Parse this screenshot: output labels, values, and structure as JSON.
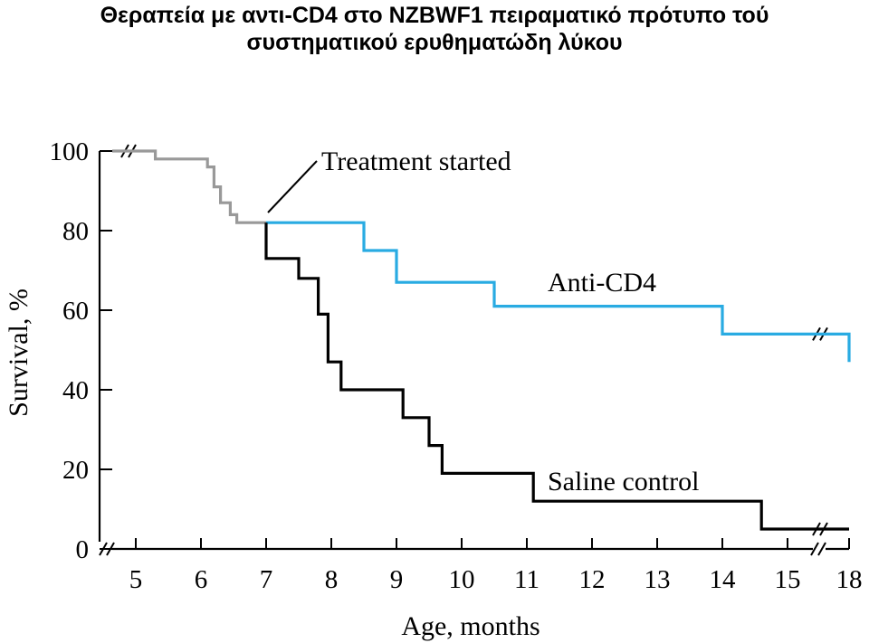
{
  "title_lines": [
    "Θεραπεία με  αντι-CD4 στο NZBWF1 πειραματικό πρότυπο τού",
    "συστηματικού ερυθηματώδη λύκου"
  ],
  "chart_data": {
    "type": "line",
    "title": "Θεραπεία με  αντι-CD4 στο NZBWF1 πειραματικό πρότυπο τού συστηματικού ερυθηματώδη λύκου",
    "xlabel": "Age, months",
    "ylabel": "Survival, %",
    "x_ticks": [
      "5",
      "6",
      "7",
      "8",
      "9",
      "10",
      "11",
      "12",
      "13",
      "14",
      "15",
      "18"
    ],
    "y_ticks": [
      "0",
      "20",
      "40",
      "60",
      "80",
      "100"
    ],
    "xlim": [
      4.5,
      18
    ],
    "ylim": [
      0,
      100
    ],
    "axis_breaks": [
      "x-axis between 15 and 18",
      "y-axis near 0",
      "top-left near 100"
    ],
    "series": [
      {
        "name": "",
        "color": "#999999",
        "steps": [
          [
            4.5,
            100
          ],
          [
            5.3,
            100
          ],
          [
            5.3,
            98
          ],
          [
            6.1,
            98
          ],
          [
            6.1,
            96
          ],
          [
            6.2,
            96
          ],
          [
            6.2,
            91
          ],
          [
            6.3,
            91
          ],
          [
            6.3,
            87
          ],
          [
            6.45,
            87
          ],
          [
            6.45,
            84
          ],
          [
            6.55,
            84
          ],
          [
            6.55,
            82
          ],
          [
            7.0,
            82
          ]
        ]
      },
      {
        "name": "Anti-CD4",
        "color": "#29abe2",
        "steps": [
          [
            7.0,
            82
          ],
          [
            8.5,
            82
          ],
          [
            8.5,
            75
          ],
          [
            9.0,
            75
          ],
          [
            9.0,
            67
          ],
          [
            10.5,
            67
          ],
          [
            10.5,
            61
          ],
          [
            14.0,
            61
          ],
          [
            14.0,
            54
          ],
          [
            18,
            54
          ],
          [
            18,
            47
          ]
        ]
      },
      {
        "name": "Saline control",
        "color": "#000000",
        "steps": [
          [
            7.0,
            82
          ],
          [
            7.0,
            73
          ],
          [
            7.5,
            73
          ],
          [
            7.5,
            68
          ],
          [
            7.8,
            68
          ],
          [
            7.8,
            59
          ],
          [
            7.95,
            59
          ],
          [
            7.95,
            47
          ],
          [
            8.15,
            47
          ],
          [
            8.15,
            40
          ],
          [
            9.1,
            40
          ],
          [
            9.1,
            33
          ],
          [
            9.5,
            33
          ],
          [
            9.5,
            26
          ],
          [
            9.7,
            26
          ],
          [
            9.7,
            19
          ],
          [
            11.1,
            19
          ],
          [
            11.1,
            12
          ],
          [
            14.6,
            12
          ],
          [
            14.6,
            5
          ],
          [
            18,
            5
          ]
        ]
      }
    ],
    "annotations": {
      "treatment": "Treatment started",
      "anti": "Anti-CD4",
      "saline": "Saline control"
    },
    "grid": false,
    "legend": "none (direct labels)"
  }
}
